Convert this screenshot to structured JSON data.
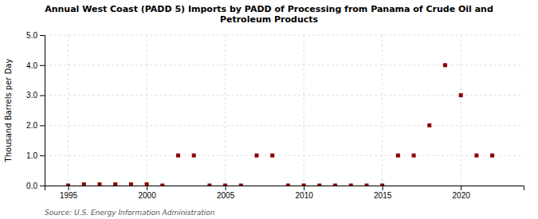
{
  "chart_data": {
    "type": "scatter",
    "title": "Annual West Coast (PADD 5) Imports by PADD of Processing from Panama of Crude Oil and\nPetroleum Products",
    "ylabel": "Thousand Barrels per Day",
    "annotations": [
      "Source: U.S. Energy Information Administration"
    ],
    "x": [
      1995,
      1996,
      1997,
      1998,
      1999,
      2000,
      2001,
      2002,
      2003,
      2004,
      2005,
      2006,
      2007,
      2008,
      2009,
      2010,
      2011,
      2012,
      2013,
      2014,
      2015,
      2016,
      2017,
      2018,
      2019,
      2020,
      2021,
      2022
    ],
    "values": [
      0.0,
      0.04,
      0.04,
      0.04,
      0.04,
      0.04,
      0.0,
      1.0,
      1.0,
      0.0,
      0.0,
      0.0,
      1.0,
      1.0,
      0.0,
      0.0,
      0.0,
      0.0,
      0.0,
      0.0,
      0.0,
      1.0,
      1.0,
      2.0,
      4.0,
      3.0,
      1.0,
      1.0
    ],
    "color": "#8b0000",
    "marker": "square",
    "xlim": [
      1993.5,
      2024
    ],
    "ylim": [
      0.0,
      5.0
    ],
    "xticks": [
      1995,
      2000,
      2005,
      2010,
      2015,
      2020
    ],
    "yticks": [
      {
        "value": 0.0,
        "label": "0.0"
      },
      {
        "value": 1.0,
        "label": "1.0"
      },
      {
        "value": 2.0,
        "label": "2.0"
      },
      {
        "value": 3.0,
        "label": "3.0"
      },
      {
        "value": 4.0,
        "label": "4.0"
      },
      {
        "value": 5.0,
        "label": "5.0"
      }
    ],
    "grid": true
  }
}
